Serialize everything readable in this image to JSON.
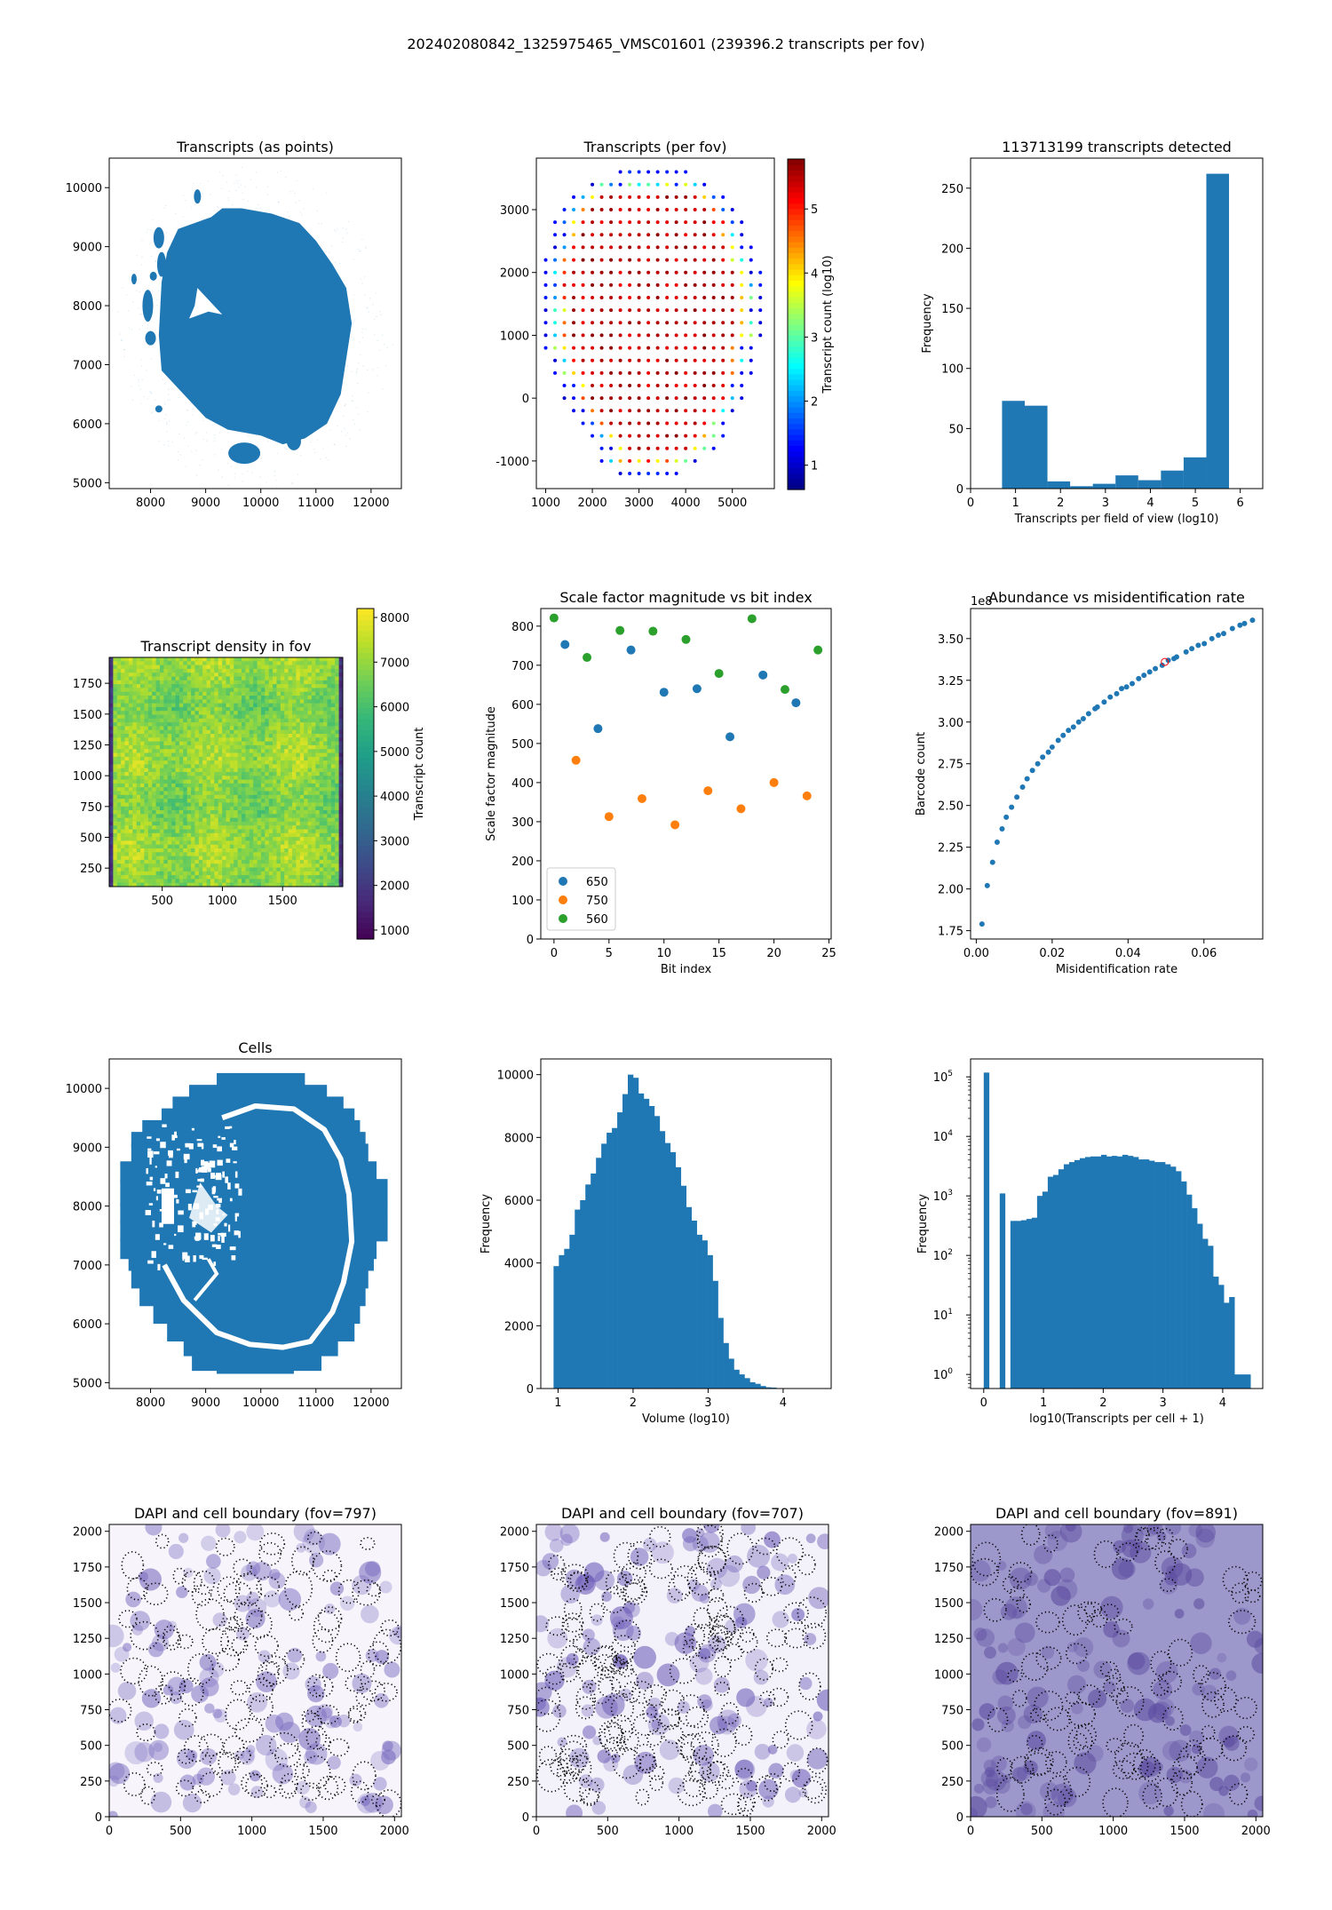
{
  "figure": {
    "suptitle": "202402080842_1325975465_VMSC01601 (239396.2 transcripts per fov)"
  },
  "colors": {
    "tab_blue": "#1f77b4",
    "tab_orange": "#ff7f0e",
    "tab_green": "#2ca02c",
    "highlight_red": "#ff0000"
  },
  "chart_data": [
    {
      "id": "transcripts_points",
      "type": "scatter",
      "title": "Transcripts (as points)",
      "xlabel": "",
      "ylabel": "",
      "xlim": [
        7250,
        12550
      ],
      "ylim": [
        4900,
        10500
      ],
      "xticks": [
        8000,
        9000,
        10000,
        11000,
        12000
      ],
      "yticks": [
        5000,
        6000,
        7000,
        8000,
        9000,
        10000
      ],
      "description": "Dense point cloud of transcript positions forming an oval tissue section",
      "shape_outline": [
        [
          9650,
          9650
        ],
        [
          10200,
          9560
        ],
        [
          10700,
          9400
        ],
        [
          11000,
          9100
        ],
        [
          11300,
          8700
        ],
        [
          11550,
          8300
        ],
        [
          11650,
          7700
        ],
        [
          11550,
          7100
        ],
        [
          11450,
          6500
        ],
        [
          11200,
          6000
        ],
        [
          10800,
          5750
        ],
        [
          10400,
          5650
        ],
        [
          10000,
          5800
        ],
        [
          9400,
          5900
        ],
        [
          9000,
          6100
        ],
        [
          8600,
          6500
        ],
        [
          8200,
          6900
        ],
        [
          8150,
          7500
        ],
        [
          8200,
          8400
        ],
        [
          8300,
          8900
        ],
        [
          8500,
          9300
        ],
        [
          9100,
          9500
        ],
        [
          9300,
          9650
        ]
      ],
      "color": "#1f77b4"
    },
    {
      "id": "transcripts_per_fov",
      "type": "scatter",
      "title": "Transcripts (per fov)",
      "xlim": [
        800,
        5900
      ],
      "ylim": [
        -1440,
        3820
      ],
      "xticks": [
        1000,
        2000,
        3000,
        4000,
        5000
      ],
      "yticks": [
        -1000,
        0,
        1000,
        2000,
        3000
      ],
      "colorbar": {
        "label": "Transcript count (log10)",
        "ticks": [
          1,
          2,
          3,
          4,
          5
        ],
        "range": [
          0.62,
          5.78
        ],
        "colormap": "jet"
      },
      "grid": {
        "x_start": 1000,
        "x_step": 200,
        "y_start": -1200,
        "y_step": 200
      },
      "rows": [
        {
          "y": 3600,
          "x_min": 2600,
          "x_max": 4000
        },
        {
          "y": 3400,
          "x_min": 2000,
          "x_max": 4400
        },
        {
          "y": 3200,
          "x_min": 1600,
          "x_max": 4800
        },
        {
          "y": 3000,
          "x_min": 1400,
          "x_max": 5000
        },
        {
          "y": 2800,
          "x_min": 1200,
          "x_max": 5200
        },
        {
          "y": 2600,
          "x_min": 1200,
          "x_max": 5200
        },
        {
          "y": 2400,
          "x_min": 1200,
          "x_max": 5400
        },
        {
          "y": 2200,
          "x_min": 1000,
          "x_max": 5400
        },
        {
          "y": 2000,
          "x_min": 1000,
          "x_max": 5600
        },
        {
          "y": 1800,
          "x_min": 1000,
          "x_max": 5600
        },
        {
          "y": 1600,
          "x_min": 1000,
          "x_max": 5600
        },
        {
          "y": 1400,
          "x_min": 1000,
          "x_max": 5600
        },
        {
          "y": 1200,
          "x_min": 1000,
          "x_max": 5600
        },
        {
          "y": 1000,
          "x_min": 1000,
          "x_max": 5600
        },
        {
          "y": 800,
          "x_min": 1000,
          "x_max": 5400
        },
        {
          "y": 600,
          "x_min": 1200,
          "x_max": 5400
        },
        {
          "y": 400,
          "x_min": 1200,
          "x_max": 5400
        },
        {
          "y": 200,
          "x_min": 1400,
          "x_max": 5200
        },
        {
          "y": 0,
          "x_min": 1400,
          "x_max": 5200
        },
        {
          "y": -200,
          "x_min": 1600,
          "x_max": 5000
        },
        {
          "y": -400,
          "x_min": 1800,
          "x_max": 4800
        },
        {
          "y": -600,
          "x_min": 2000,
          "x_max": 4800
        },
        {
          "y": -800,
          "x_min": 2200,
          "x_max": 4600
        },
        {
          "y": -1000,
          "x_min": 2200,
          "x_max": 4200
        },
        {
          "y": -1200,
          "x_min": 2600,
          "x_max": 3800
        }
      ],
      "value_model": "inner fovs ~5.5 (log10); edge fovs ~1 (log10); transitional fovs 2-5"
    },
    {
      "id": "transcripts_hist",
      "type": "bar",
      "title": "113713199 transcripts detected",
      "xlabel": "Transcripts per field of view (log10)",
      "ylabel": "Frequency",
      "xlim": [
        0,
        6.5
      ],
      "ylim": [
        0,
        275
      ],
      "xticks": [
        0,
        1,
        2,
        3,
        4,
        5,
        6
      ],
      "yticks": [
        0,
        50,
        100,
        150,
        200,
        250
      ],
      "bin_edges": [
        0.7,
        1.205,
        1.71,
        2.215,
        2.72,
        3.225,
        3.73,
        4.235,
        4.74,
        5.245,
        5.75
      ],
      "values": [
        73,
        69,
        6,
        2,
        4,
        11,
        7,
        15,
        26,
        262
      ]
    },
    {
      "id": "density_in_fov",
      "type": "heatmap",
      "title": "Transcript density in fov",
      "xlim": [
        60,
        2000
      ],
      "ylim": [
        100,
        1960
      ],
      "xticks": [
        500,
        1000,
        1500
      ],
      "yticks": [
        250,
        500,
        750,
        1000,
        1250,
        1500,
        1750
      ],
      "colorbar": {
        "label": "Transcript count",
        "ticks": [
          1000,
          2000,
          3000,
          4000,
          5000,
          6000,
          7000,
          8000
        ],
        "range": [
          800,
          8200
        ],
        "colormap": "viridis"
      },
      "value_summary": {
        "typical": 7000,
        "min_interior": 5800,
        "max": 8100,
        "edge": 1500
      }
    },
    {
      "id": "scale_factor",
      "type": "scatter",
      "title": "Scale factor magnitude vs bit index",
      "xlabel": "Bit index",
      "ylabel": "Scale factor magnitude",
      "xlim": [
        -1.2,
        25.2
      ],
      "ylim": [
        0,
        845
      ],
      "xticks": [
        0,
        5,
        10,
        15,
        20,
        25
      ],
      "yticks": [
        0,
        100,
        200,
        300,
        400,
        500,
        600,
        700,
        800
      ],
      "legend_position": "lower-left",
      "series": [
        {
          "name": "650",
          "x": [
            1,
            4,
            7,
            10,
            13,
            16,
            19,
            22
          ],
          "y": [
            753,
            538,
            739,
            631,
            640,
            517,
            675,
            604
          ]
        },
        {
          "name": "750",
          "x": [
            2,
            5,
            8,
            11,
            14,
            17,
            20,
            23
          ],
          "y": [
            457,
            313,
            359,
            292,
            379,
            333,
            400,
            366
          ]
        },
        {
          "name": "560",
          "x": [
            0,
            3,
            6,
            9,
            12,
            15,
            18,
            21,
            24
          ],
          "y": [
            821,
            720,
            789,
            787,
            766,
            679,
            819,
            638,
            739
          ]
        }
      ]
    },
    {
      "id": "abundance_vs_misid",
      "type": "scatter",
      "title": "Abundance vs misidentification rate",
      "xlabel": "Misidentification rate",
      "ylabel": "Barcode count",
      "offset_label": "1e8",
      "xlim": [
        -0.0015,
        0.0755
      ],
      "ylim": [
        1.7,
        3.68
      ],
      "xticks": [
        0.0,
        0.02,
        0.04,
        0.06
      ],
      "xtick_labels": [
        "0.00",
        "0.02",
        "0.04",
        "0.06"
      ],
      "yticks": [
        1.75,
        2.0,
        2.25,
        2.5,
        2.75,
        3.0,
        3.25,
        3.5
      ],
      "ytick_labels": [
        "1.75",
        "2.00",
        "2.25",
        "2.50",
        "2.75",
        "3.00",
        "3.25",
        "3.50"
      ],
      "x": [
        0.0015,
        0.0029,
        0.0043,
        0.0055,
        0.0068,
        0.0079,
        0.0093,
        0.0107,
        0.0122,
        0.0134,
        0.0148,
        0.0162,
        0.0175,
        0.019,
        0.02,
        0.0216,
        0.0229,
        0.0243,
        0.0256,
        0.027,
        0.0282,
        0.0296,
        0.0313,
        0.0319,
        0.0337,
        0.0353,
        0.037,
        0.0383,
        0.0396,
        0.0411,
        0.0428,
        0.0442,
        0.0457,
        0.0472,
        0.049,
        0.0506,
        0.0521,
        0.0528,
        0.0553,
        0.0568,
        0.0585,
        0.0601,
        0.0621,
        0.0638,
        0.0652,
        0.0675,
        0.0695,
        0.0707,
        0.0728
      ],
      "y": [
        1.79,
        2.02,
        2.16,
        2.28,
        2.36,
        2.43,
        2.49,
        2.55,
        2.61,
        2.66,
        2.71,
        2.75,
        2.79,
        2.82,
        2.85,
        2.89,
        2.92,
        2.95,
        2.97,
        3.0,
        3.02,
        3.05,
        3.08,
        3.09,
        3.12,
        3.15,
        3.17,
        3.2,
        3.21,
        3.23,
        3.26,
        3.28,
        3.3,
        3.32,
        3.34,
        3.37,
        3.38,
        3.39,
        3.42,
        3.44,
        3.46,
        3.47,
        3.5,
        3.52,
        3.53,
        3.56,
        3.58,
        3.59,
        3.61
      ],
      "highlight": {
        "x": 0.0497,
        "y": 3.36
      }
    },
    {
      "id": "cells",
      "type": "scatter",
      "title": "Cells",
      "xlim": [
        7250,
        12550
      ],
      "ylim": [
        4900,
        10500
      ],
      "xticks": [
        8000,
        9000,
        10000,
        11000,
        12000
      ],
      "yticks": [
        5000,
        6000,
        7000,
        8000,
        9000,
        10000
      ],
      "description": "Cell centroid point cloud tiled by fov, with white gap ring",
      "color": "#1f77b4"
    },
    {
      "id": "volume_hist",
      "type": "bar",
      "title": "",
      "xlabel": "Volume (log10)",
      "ylabel": "Frequency",
      "xlim": [
        0.77,
        4.64
      ],
      "ylim": [
        0,
        10500
      ],
      "xticks": [
        1,
        2,
        3,
        4
      ],
      "yticks": [
        0,
        2000,
        4000,
        6000,
        8000,
        10000
      ],
      "bin_start": 0.94,
      "bin_width": 0.0707,
      "values": [
        3900,
        4250,
        4450,
        4900,
        5700,
        6000,
        6500,
        6850,
        7350,
        7800,
        8150,
        8300,
        8800,
        9380,
        10000,
        9900,
        9400,
        9230,
        9000,
        8680,
        8200,
        7820,
        7530,
        7050,
        6460,
        5780,
        5350,
        4900,
        4720,
        4250,
        3430,
        2250,
        1450,
        950,
        600,
        450,
        330,
        200,
        150,
        80,
        40,
        30,
        10,
        8,
        5,
        3,
        2,
        1,
        1,
        1
      ]
    },
    {
      "id": "transcripts_per_cell_hist",
      "type": "bar",
      "title": "",
      "xlabel": "log10(Transcripts per cell + 1)",
      "ylabel": "Frequency",
      "yscale": "log",
      "xlim": [
        -0.22,
        4.67
      ],
      "ylim": [
        0.58,
        200000
      ],
      "xticks": [
        0,
        1,
        2,
        3,
        4
      ],
      "yticks": [
        1,
        10,
        100,
        1000,
        10000,
        100000
      ],
      "ytick_labels": [
        "10^0",
        "10^1",
        "10^2",
        "10^3",
        "10^4",
        "10^5"
      ],
      "bin_start": 0.0,
      "bin_width": 0.0893,
      "values": [
        118000,
        0,
        0,
        1100,
        0,
        380,
        380,
        390,
        410,
        430,
        1000,
        1180,
        2100,
        2250,
        2800,
        3400,
        3700,
        4000,
        4300,
        4500,
        4600,
        4600,
        4900,
        4600,
        4700,
        4600,
        4900,
        4700,
        4500,
        4100,
        4100,
        3900,
        3700,
        3700,
        3400,
        3100,
        2600,
        1750,
        1050,
        620,
        340,
        190,
        145,
        44,
        32,
        16,
        20,
        1,
        1,
        1
      ]
    },
    {
      "id": "dapi_797",
      "type": "heatmap",
      "title": "DAPI and cell boundary (fov=797)",
      "xlim": [
        0,
        2048
      ],
      "ylim": [
        0,
        2048
      ],
      "xticks": [
        0,
        500,
        1000,
        1500,
        2000
      ],
      "yticks": [
        0,
        250,
        500,
        750,
        1000,
        1250,
        1500,
        1750,
        2000
      ],
      "background": "light"
    },
    {
      "id": "dapi_707",
      "type": "heatmap",
      "title": "DAPI and cell boundary (fov=707)",
      "xlim": [
        0,
        2048
      ],
      "ylim": [
        0,
        2048
      ],
      "xticks": [
        0,
        500,
        1000,
        1500,
        2000
      ],
      "yticks": [
        0,
        250,
        500,
        750,
        1000,
        1250,
        1500,
        1750,
        2000
      ],
      "background": "light"
    },
    {
      "id": "dapi_891",
      "type": "heatmap",
      "title": "DAPI and cell boundary (fov=891)",
      "xlim": [
        0,
        2048
      ],
      "ylim": [
        0,
        2048
      ],
      "xticks": [
        0,
        500,
        1000,
        1500,
        2000
      ],
      "yticks": [
        0,
        250,
        500,
        750,
        1000,
        1250,
        1500,
        1750,
        2000
      ],
      "background": "purple"
    }
  ]
}
